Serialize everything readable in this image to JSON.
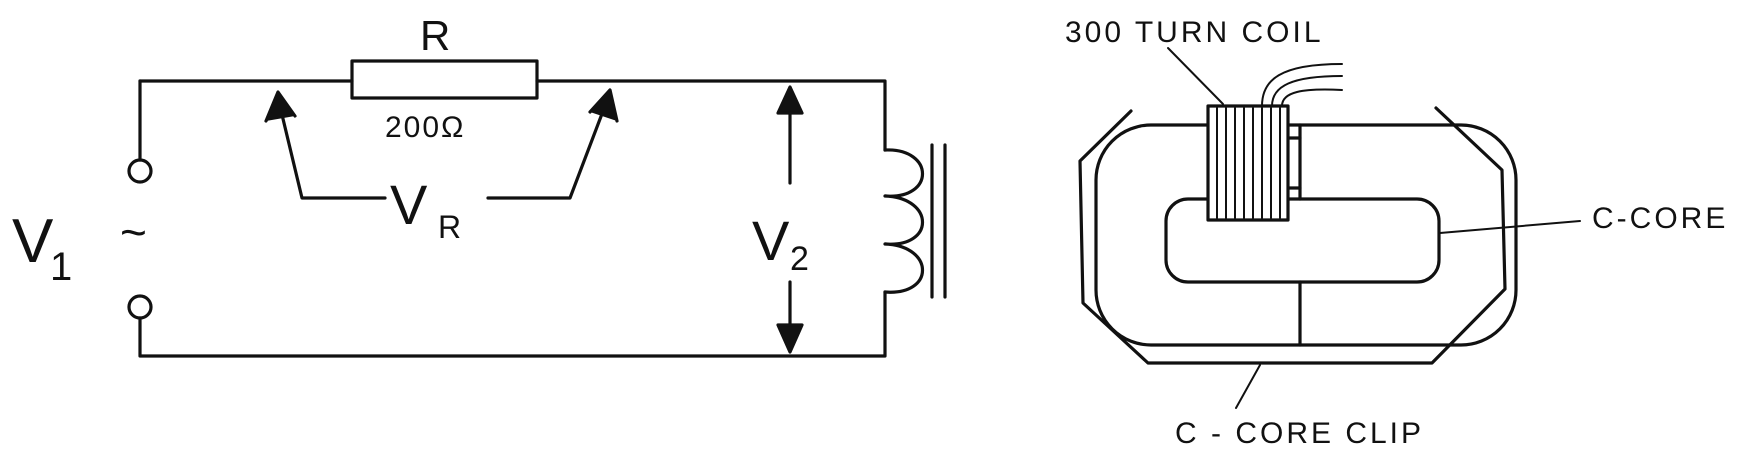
{
  "circuit": {
    "resistor_name": "R",
    "resistor_value": "200Ω",
    "source_voltage_main": "V",
    "source_voltage_sub": "1",
    "source_symbol": "~",
    "resistor_voltage_main": "V",
    "resistor_voltage_sub": "R",
    "inductor_voltage_main": "V",
    "inductor_voltage_sub": "2"
  },
  "transformer": {
    "coil_label": "300 TURN COIL",
    "core_label": "C-CORE",
    "clip_label": "C - CORE CLIP"
  }
}
